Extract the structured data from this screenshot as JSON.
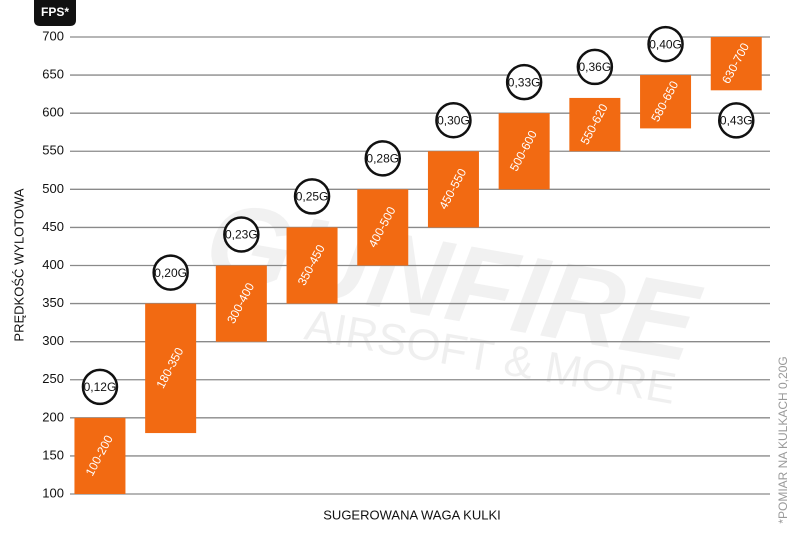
{
  "chart_data": {
    "type": "floating_bar",
    "y_unit": "FPS*",
    "ylabel": "PRĘDKOŚĆ WYLOTOWA",
    "xlabel": "SUGEROWANA WAGA KULKI",
    "note": "*POMIAR NA KULKACH 0,20G",
    "watermark": [
      "GUNFIRE",
      "AIRSOFT & MORE"
    ],
    "categories": [
      "0,12G",
      "0,20G",
      "0,23G",
      "0,25G",
      "0,28G",
      "0,30G",
      "0,33G",
      "0,36G",
      "0,40G",
      "0,43G"
    ],
    "low": [
      100,
      180,
      300,
      350,
      400,
      450,
      500,
      550,
      580,
      630
    ],
    "high": [
      200,
      350,
      400,
      450,
      500,
      550,
      600,
      620,
      650,
      700
    ],
    "value_labels": [
      "100-200",
      "180-350",
      "300-400",
      "350-450",
      "400-500",
      "450-550",
      "500-600",
      "550-620",
      "580-650",
      "630-700"
    ],
    "color": "#f26a12",
    "ylim": [
      100,
      700
    ],
    "yticks": [
      100,
      150,
      200,
      250,
      300,
      350,
      400,
      450,
      500,
      550,
      600,
      650,
      700
    ],
    "grid": true
  }
}
